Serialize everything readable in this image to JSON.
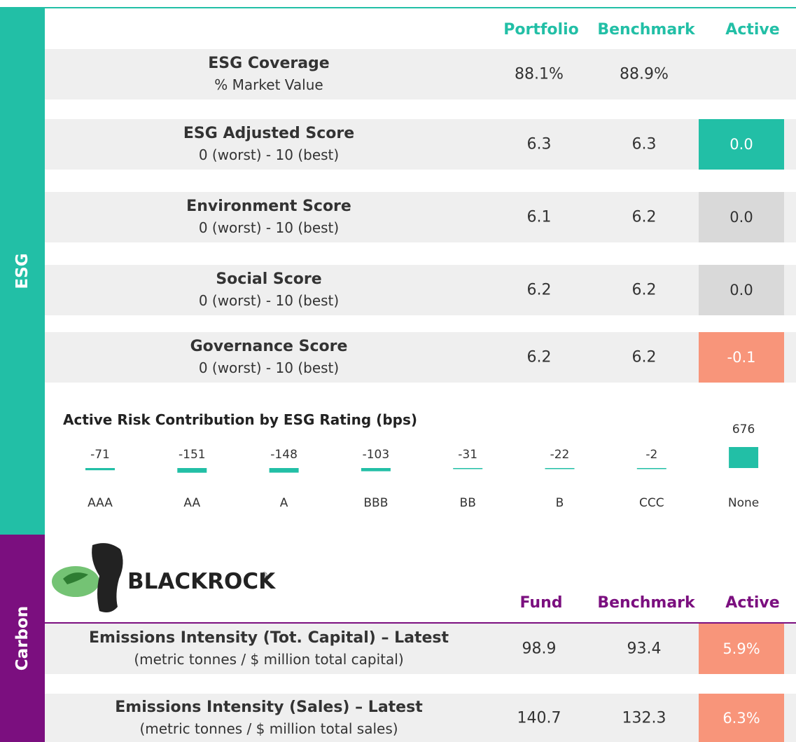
{
  "esg": {
    "side_label": "ESG",
    "side_color": "#22bfa6",
    "header_color": "#22bfa6",
    "columns": [
      "Portfolio",
      "Benchmark",
      "Active"
    ],
    "rows": [
      {
        "title": "ESG Coverage",
        "subtitle": "% Market Value",
        "portfolio": "88.1%",
        "benchmark": "88.9%"
      },
      {
        "title": "ESG Adjusted Score",
        "subtitle": "0 (worst)  - 10 (best)",
        "portfolio": "6.3",
        "benchmark": "6.3",
        "active": "0.0",
        "active_color": "#22bfa6"
      },
      {
        "title": "Environment Score",
        "subtitle": "0 (worst)  - 10 (best)",
        "portfolio": "6.1",
        "benchmark": "6.2",
        "active": "0.0",
        "active_color": "#d9d9d9"
      },
      {
        "title": "Social Score",
        "subtitle": "0 (worst)  - 10 (best)",
        "portfolio": "6.2",
        "benchmark": "6.2",
        "active": "0.0",
        "active_color": "#d9d9d9"
      },
      {
        "title": "Governance Score",
        "subtitle": "0 (worst)  - 10 (best)",
        "portfolio": "6.2",
        "benchmark": "6.2",
        "active": "-0.1",
        "active_color": "#f8957a"
      }
    ]
  },
  "risk_chart": {
    "type": "bar",
    "title": "Active Risk Contribution by ESG Rating (bps)",
    "categories": [
      "AAA",
      "AA",
      "A",
      "BBB",
      "BB",
      "B",
      "CCC",
      "None"
    ],
    "values": [
      -71,
      -151,
      -148,
      -103,
      -31,
      -22,
      -2,
      676
    ],
    "color": "#22bfa6"
  },
  "carbon": {
    "side_label": "Carbon",
    "side_color": "#7b0f7f",
    "header_color": "#7b0f7f",
    "logo_text": "BLACKROCK",
    "logo_mark": "®",
    "columns": [
      "Fund",
      "Benchmark",
      "Active"
    ],
    "rows": [
      {
        "title": "Emissions Intensity (Tot. Capital) – Latest",
        "subtitle": "(metric tonnes / $ million total capital)",
        "portfolio": "98.9",
        "benchmark": "93.4",
        "active": "5.9%",
        "active_color": "#f8957a"
      },
      {
        "title": "Emissions Intensity (Sales) – Latest",
        "subtitle": "(metric tonnes / $ million total sales)",
        "portfolio": "140.7",
        "benchmark": "132.3",
        "active": "6.3%",
        "active_color": "#f8957a"
      }
    ]
  }
}
